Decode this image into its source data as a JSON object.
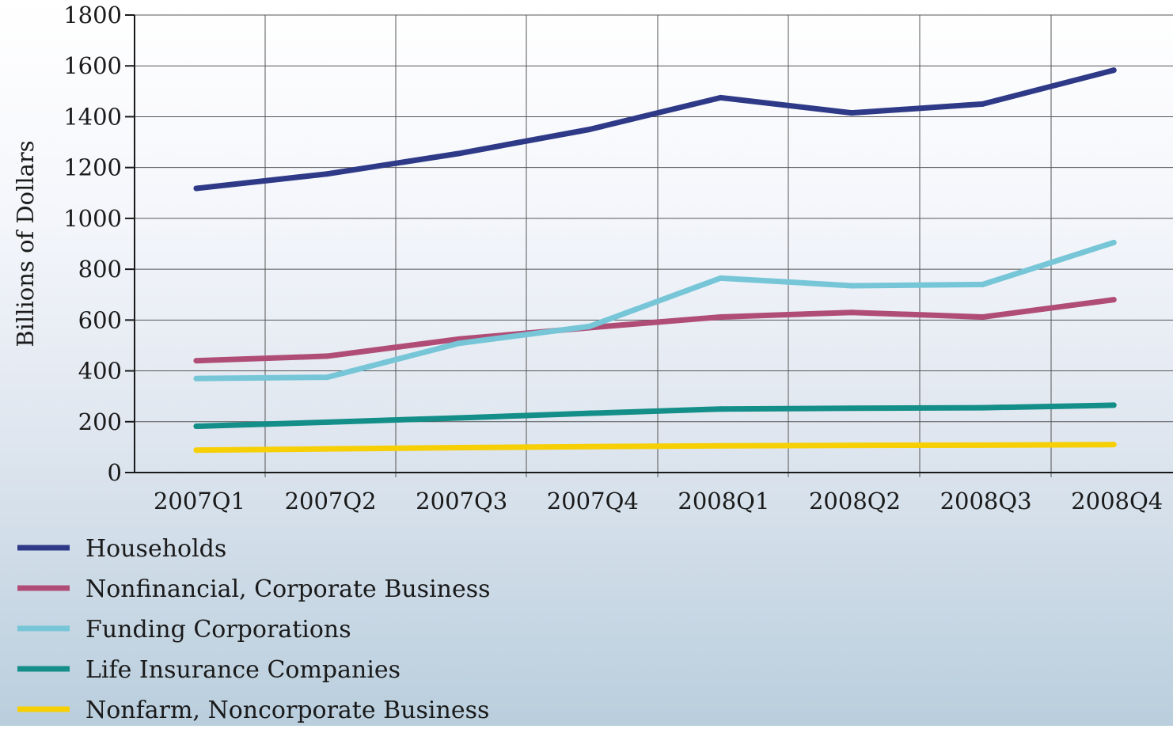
{
  "chart_data": {
    "type": "line",
    "title": "",
    "xlabel": "",
    "ylabel": "Billions of Dollars",
    "ylim": [
      0,
      1800
    ],
    "yticks": [
      0,
      200,
      400,
      600,
      800,
      1000,
      1200,
      1400,
      1600,
      1800
    ],
    "categories": [
      "2007Q1",
      "2007Q2",
      "2007Q3",
      "2007Q4",
      "2008Q1",
      "2008Q2",
      "2008Q3",
      "2008Q4"
    ],
    "grid": true,
    "legend_position": "bottom-left",
    "series": [
      {
        "name": "Households",
        "color": "#2e3a87",
        "values": [
          1118,
          1175,
          1255,
          1350,
          1475,
          1415,
          1450,
          1583
        ]
      },
      {
        "name": "Nonfinancial, Corporate Business",
        "color": "#b04d77",
        "values": [
          440,
          458,
          525,
          570,
          612,
          630,
          612,
          680
        ]
      },
      {
        "name": "Funding Corporations",
        "color": "#76c6d8",
        "values": [
          370,
          375,
          508,
          575,
          765,
          735,
          740,
          905
        ]
      },
      {
        "name": "Life Insurance Companies",
        "color": "#138e88",
        "values": [
          182,
          198,
          215,
          233,
          250,
          253,
          255,
          265
        ]
      },
      {
        "name": "Nonfarm, Noncorporate Business",
        "color": "#f6cf05",
        "values": [
          88,
          93,
          98,
          102,
          105,
          107,
          108,
          110
        ]
      }
    ]
  }
}
